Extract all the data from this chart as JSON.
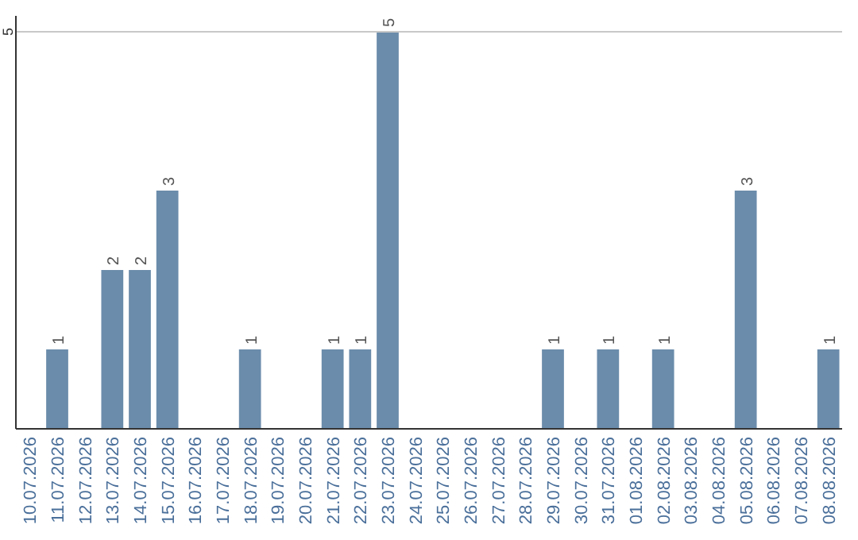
{
  "chart_data": {
    "type": "bar",
    "categories": [
      "10.07.2026",
      "11.07.2026",
      "12.07.2026",
      "13.07.2026",
      "14.07.2026",
      "15.07.2026",
      "16.07.2026",
      "17.07.2026",
      "18.07.2026",
      "19.07.2026",
      "20.07.2026",
      "21.07.2026",
      "22.07.2026",
      "23.07.2026",
      "24.07.2026",
      "25.07.2026",
      "26.07.2026",
      "27.07.2026",
      "28.07.2026",
      "29.07.2026",
      "30.07.2026",
      "31.07.2026",
      "01.08.2026",
      "02.08.2026",
      "03.08.2026",
      "04.08.2026",
      "05.08.2026",
      "06.08.2026",
      "07.08.2026",
      "08.08.2026"
    ],
    "values": [
      0,
      1,
      0,
      2,
      2,
      3,
      0,
      0,
      1,
      0,
      0,
      1,
      1,
      5,
      0,
      0,
      0,
      0,
      0,
      1,
      0,
      1,
      0,
      1,
      0,
      0,
      3,
      0,
      0,
      1
    ],
    "value_labels": [
      null,
      "1",
      null,
      "2",
      "2",
      "3",
      null,
      null,
      "1",
      null,
      null,
      "1",
      "1",
      "5",
      null,
      null,
      null,
      null,
      null,
      "1",
      null,
      "1",
      null,
      "1",
      null,
      null,
      "3",
      null,
      null,
      "1"
    ],
    "color": "#6b8cab",
    "ylim": [
      0,
      5.2
    ],
    "yticks": [
      5
    ],
    "grid": "y"
  }
}
